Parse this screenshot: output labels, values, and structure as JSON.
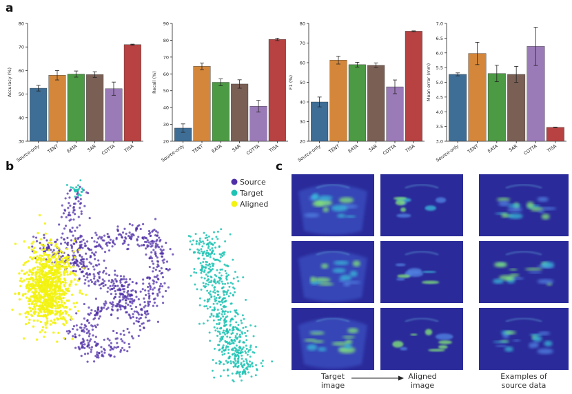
{
  "panels": {
    "a": "a",
    "b": "b",
    "c": "c"
  },
  "colors": {
    "Source-only": "#3e6e96",
    "TENT": "#d4873a",
    "EATA": "#4c9a44",
    "SAR": "#7a5f55",
    "COTTA": "#9b7ab8",
    "TISA": "#b84141",
    "source": "#5030a8",
    "target": "#1ec3b4",
    "aligned": "#f3f312"
  },
  "chart_data": [
    {
      "type": "bar",
      "title": "",
      "xlabel": "",
      "ylabel": "Accuracy (%)",
      "categories": [
        "Source-only",
        "TENT",
        "EATA",
        "SAR",
        "COTTA",
        "TISA"
      ],
      "values": [
        52.5,
        58.0,
        58.5,
        58.3,
        52.3,
        71.0
      ],
      "errors": [
        1.2,
        2.0,
        1.3,
        1.2,
        2.8,
        0.2
      ],
      "ylim": [
        30,
        80
      ],
      "yticks": [
        30,
        40,
        50,
        60,
        70,
        80
      ]
    },
    {
      "type": "bar",
      "title": "",
      "xlabel": "",
      "ylabel": "Recall (%)",
      "categories": [
        "Source-only",
        "TENT",
        "EATA",
        "SAR",
        "COTTA",
        "TISA"
      ],
      "values": [
        27.8,
        64.5,
        55.0,
        54.0,
        40.8,
        80.5
      ],
      "errors": [
        2.5,
        2.0,
        2.0,
        2.5,
        3.5,
        0.7
      ],
      "ylim": [
        20,
        90
      ],
      "yticks": [
        20,
        30,
        40,
        50,
        60,
        70,
        80,
        90
      ]
    },
    {
      "type": "bar",
      "title": "",
      "xlabel": "",
      "ylabel": "F1 (%)",
      "categories": [
        "Source-only",
        "TENT",
        "EATA",
        "SAR",
        "COTTA",
        "TISA"
      ],
      "values": [
        40.0,
        61.3,
        59.0,
        58.7,
        47.7,
        76.0
      ],
      "errors": [
        2.5,
        2.0,
        1.2,
        1.2,
        3.5,
        0.2
      ],
      "ylim": [
        20,
        80
      ],
      "yticks": [
        20,
        30,
        40,
        50,
        60,
        70,
        80
      ]
    },
    {
      "type": "bar",
      "title": "",
      "xlabel": "",
      "ylabel": "Mean error (mm)",
      "categories": [
        "Source-only",
        "TENT",
        "EATA",
        "SAR",
        "COTTA",
        "TISA"
      ],
      "values": [
        5.27,
        5.98,
        5.3,
        5.27,
        6.22,
        3.47
      ],
      "errors": [
        0.05,
        0.38,
        0.28,
        0.27,
        0.65,
        0.01
      ],
      "ylim": [
        3.0,
        7.0
      ],
      "yticks": [
        "3.0",
        "3.5",
        "4.0",
        "4.5",
        "5.0",
        "5.5",
        "6.0",
        "6.5",
        "7.0"
      ]
    },
    {
      "type": "scatter",
      "title": "",
      "legend": [
        "Source",
        "Target",
        "Aligned"
      ],
      "legend_position": "top-right"
    }
  ],
  "panel_c": {
    "captions": [
      "Target\nimage",
      "Aligned\nimage",
      "Examples of\nsource data"
    ],
    "caption_target_l1": "Target",
    "caption_target_l2": "image",
    "caption_aligned_l1": "Aligned",
    "caption_aligned_l2": "image",
    "caption_examples_l1": "Examples of",
    "caption_examples_l2": "source data"
  }
}
